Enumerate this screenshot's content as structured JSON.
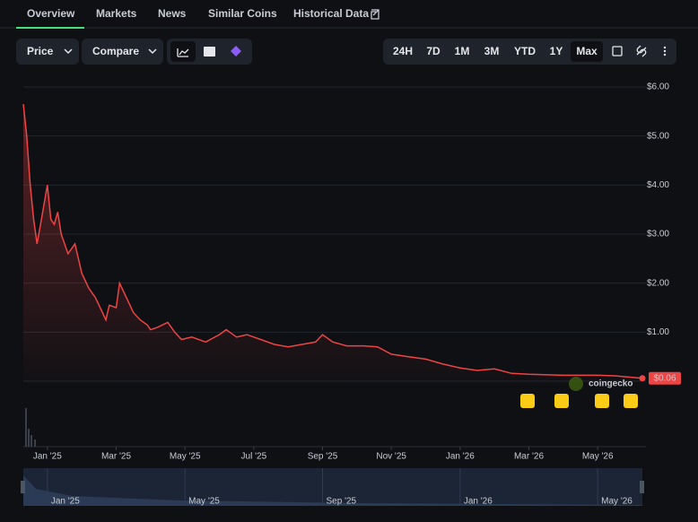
{
  "tabs": [
    "Overview",
    "Markets",
    "News",
    "Similar Coins",
    "Historical Data"
  ],
  "toolbar": {
    "left": [
      "Price",
      "Compare"
    ],
    "ranges": [
      "24H",
      "7D",
      "1M",
      "3M",
      "YTD",
      "1Y",
      "Max"
    ]
  },
  "watermark": "coingecko",
  "chart_data": {
    "type": "line",
    "series": [
      {
        "name": "Price",
        "color": "#ef4444",
        "x": [
          -0.7,
          -0.6,
          -0.5,
          -0.4,
          -0.3,
          -0.2,
          -0.1,
          0,
          0.1,
          0.2,
          0.3,
          0.4,
          0.6,
          0.8,
          1.0,
          1.2,
          1.4,
          1.6,
          1.7,
          1.8,
          2.0,
          2.1,
          2.3,
          2.5,
          2.7,
          2.9,
          3.0,
          3.2,
          3.5,
          3.7,
          3.9,
          4.2,
          4.6,
          5.0,
          5.2,
          5.5,
          5.8,
          6.2,
          6.6,
          7.0,
          7.4,
          7.8,
          8.0,
          8.3,
          8.7,
          9.2,
          9.6,
          10.0,
          10.5,
          11.0,
          11.5,
          12.0,
          12.5,
          13.0,
          13.5,
          14.0,
          15.0,
          16.0,
          16.5,
          17.3
        ],
        "values": [
          5.65,
          5.0,
          4.0,
          3.3,
          2.8,
          3.2,
          3.6,
          4.0,
          3.3,
          3.2,
          3.45,
          3.0,
          2.6,
          2.8,
          2.2,
          1.9,
          1.7,
          1.4,
          1.25,
          1.55,
          1.5,
          2.0,
          1.7,
          1.4,
          1.25,
          1.15,
          1.05,
          1.1,
          1.2,
          1.0,
          0.85,
          0.9,
          0.8,
          0.95,
          1.05,
          0.9,
          0.95,
          0.85,
          0.75,
          0.7,
          0.75,
          0.8,
          0.95,
          0.8,
          0.72,
          0.72,
          0.7,
          0.55,
          0.5,
          0.45,
          0.35,
          0.27,
          0.22,
          0.25,
          0.16,
          0.14,
          0.12,
          0.12,
          0.11,
          0.06
        ]
      }
    ],
    "current_price": {
      "value": 0.06,
      "label": "$0.06"
    },
    "xlim": [
      -0.7,
      17.3
    ],
    "xticks": [
      {
        "value": 0,
        "label": "Jan '25"
      },
      {
        "value": 2,
        "label": "Mar '25"
      },
      {
        "value": 4,
        "label": "May '25"
      },
      {
        "value": 6,
        "label": "Jul '25"
      },
      {
        "value": 8,
        "label": "Sep '25"
      },
      {
        "value": 10,
        "label": "Nov '25"
      },
      {
        "value": 12,
        "label": "Jan '26"
      },
      {
        "value": 14,
        "label": "Mar '26"
      },
      {
        "value": 16,
        "label": "May '26"
      }
    ],
    "ylim": [
      0,
      6
    ],
    "yticks": [
      {
        "value": 6,
        "label": "$6.00"
      },
      {
        "value": 5,
        "label": "$5.00"
      },
      {
        "value": 4,
        "label": "$4.00"
      },
      {
        "value": 3,
        "label": "$3.00"
      },
      {
        "value": 2,
        "label": "$2.00"
      },
      {
        "value": 1,
        "label": "$1.00"
      }
    ],
    "grid": true,
    "navigator_ticks": [
      {
        "value": 0,
        "label": "Jan '25"
      },
      {
        "value": 4,
        "label": "May '25"
      },
      {
        "value": 8,
        "label": "Sep '25"
      },
      {
        "value": 12,
        "label": "Jan '26"
      },
      {
        "value": 16,
        "label": "May '26"
      }
    ]
  }
}
